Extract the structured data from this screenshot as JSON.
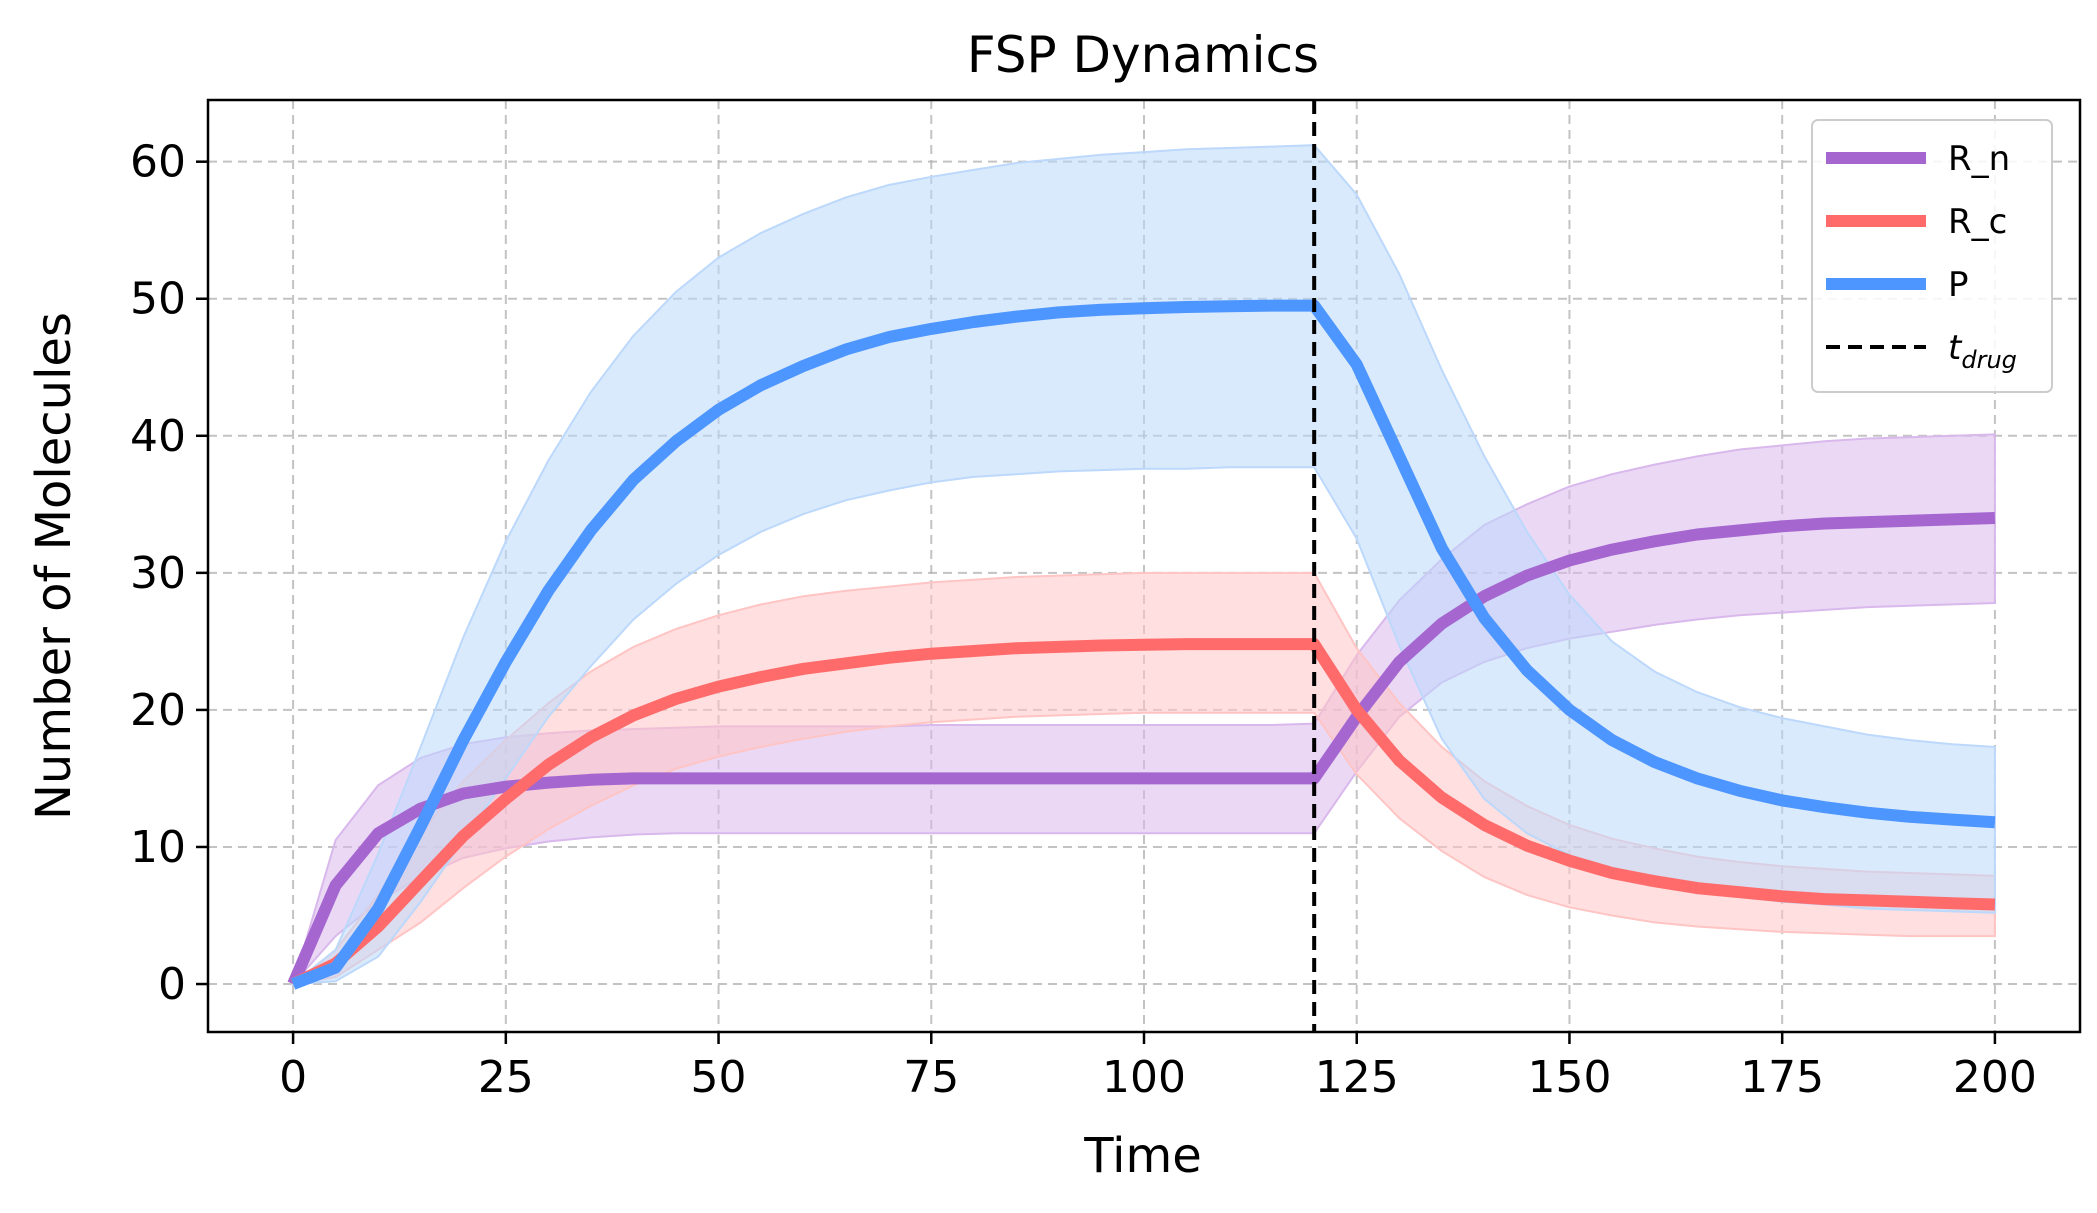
{
  "chart_data": {
    "type": "line",
    "title": "FSP Dynamics",
    "xlabel": "Time",
    "ylabel": "Number of  Molecules",
    "xlim": [
      -10,
      210
    ],
    "ylim": [
      -3.5,
      64.5
    ],
    "xticks": [
      0,
      25,
      50,
      75,
      100,
      125,
      150,
      175,
      200
    ],
    "yticks": [
      0,
      10,
      20,
      30,
      40,
      50,
      60
    ],
    "grid": true,
    "legend_position": "top-right",
    "x": [
      0,
      5,
      10,
      15,
      20,
      25,
      30,
      35,
      40,
      45,
      50,
      55,
      60,
      65,
      70,
      75,
      80,
      85,
      90,
      95,
      100,
      105,
      110,
      115,
      120,
      125,
      130,
      135,
      140,
      145,
      150,
      155,
      160,
      165,
      170,
      175,
      180,
      185,
      190,
      195,
      200
    ],
    "series": [
      {
        "name": "R_n",
        "color": "#a566d0",
        "band_color": "#d9b8ec",
        "mean": [
          0,
          7.2,
          11,
          12.8,
          13.9,
          14.4,
          14.7,
          14.9,
          15,
          15,
          15,
          15,
          15,
          15,
          15,
          15,
          15,
          15,
          15,
          15,
          15,
          15,
          15,
          15,
          15,
          19.5,
          23.5,
          26.3,
          28.3,
          29.8,
          30.9,
          31.7,
          32.3,
          32.8,
          33.1,
          33.4,
          33.6,
          33.7,
          33.8,
          33.9,
          34
        ],
        "lower": [
          0,
          3.5,
          6,
          7.8,
          9.2,
          9.9,
          10.4,
          10.7,
          10.9,
          11,
          11,
          11,
          11,
          11,
          11,
          11,
          11,
          11,
          11,
          11,
          11,
          11,
          11,
          11,
          11,
          15.5,
          19.5,
          22,
          23.5,
          24.5,
          25.2,
          25.7,
          26.2,
          26.6,
          26.9,
          27.1,
          27.3,
          27.5,
          27.6,
          27.7,
          27.8
        ],
        "upper": [
          0,
          10.5,
          14.5,
          16.5,
          17.5,
          18,
          18.3,
          18.5,
          18.6,
          18.7,
          18.8,
          18.8,
          18.8,
          18.8,
          18.8,
          18.9,
          18.9,
          18.9,
          18.9,
          18.9,
          18.9,
          18.9,
          18.9,
          18.9,
          19,
          24,
          28,
          31,
          33.5,
          35,
          36.3,
          37.2,
          37.9,
          38.5,
          39,
          39.3,
          39.6,
          39.8,
          39.9,
          40,
          40.1
        ]
      },
      {
        "name": "R_c",
        "color": "#ff6b6b",
        "band_color": "#ffc4c4",
        "mean": [
          0,
          1.5,
          4.2,
          7.5,
          10.8,
          13.5,
          16,
          18,
          19.6,
          20.8,
          21.7,
          22.4,
          23,
          23.4,
          23.8,
          24.1,
          24.3,
          24.5,
          24.6,
          24.7,
          24.75,
          24.8,
          24.8,
          24.8,
          24.8,
          20,
          16.3,
          13.6,
          11.6,
          10.1,
          9,
          8.1,
          7.5,
          7,
          6.7,
          6.4,
          6.2,
          6.1,
          6,
          5.9,
          5.8
        ],
        "lower": [
          0,
          0.5,
          2.5,
          4.5,
          7,
          9.3,
          11.3,
          13,
          14.5,
          15.7,
          16.6,
          17.3,
          17.9,
          18.4,
          18.8,
          19.1,
          19.3,
          19.5,
          19.6,
          19.7,
          19.8,
          19.8,
          19.8,
          19.8,
          19.8,
          15.3,
          12.1,
          9.7,
          7.8,
          6.5,
          5.6,
          5,
          4.5,
          4.2,
          4,
          3.8,
          3.7,
          3.6,
          3.5,
          3.5,
          3.5
        ],
        "upper": [
          0,
          2.5,
          6.5,
          11,
          14.8,
          17.8,
          20.5,
          22.8,
          24.6,
          25.9,
          26.9,
          27.7,
          28.3,
          28.7,
          29,
          29.3,
          29.5,
          29.7,
          29.8,
          29.9,
          30,
          30,
          30,
          30,
          30,
          24.5,
          20.5,
          17.3,
          14.8,
          13,
          11.6,
          10.6,
          9.9,
          9.3,
          8.9,
          8.6,
          8.4,
          8.2,
          8.1,
          8,
          7.9
        ]
      },
      {
        "name": "P",
        "color": "#4d96ff",
        "band_color": "#bcd8fb",
        "mean": [
          0,
          1.2,
          5.5,
          11.5,
          17.8,
          23.5,
          28.7,
          33.1,
          36.8,
          39.6,
          41.9,
          43.7,
          45.1,
          46.3,
          47.2,
          47.8,
          48.3,
          48.7,
          49,
          49.2,
          49.3,
          49.4,
          49.45,
          49.5,
          49.5,
          45.2,
          38.5,
          31.8,
          26.7,
          22.9,
          20,
          17.8,
          16.2,
          15,
          14.1,
          13.4,
          12.9,
          12.5,
          12.2,
          12,
          11.8
        ],
        "lower": [
          0,
          0.2,
          2,
          6,
          10.5,
          15,
          19.5,
          23.2,
          26.6,
          29.2,
          31.3,
          33,
          34.3,
          35.3,
          36,
          36.6,
          37,
          37.2,
          37.4,
          37.5,
          37.6,
          37.6,
          37.7,
          37.7,
          37.7,
          32.5,
          24.7,
          17.9,
          13.5,
          11,
          9.4,
          8.3,
          7.5,
          6.9,
          6.4,
          6,
          5.8,
          5.5,
          5.4,
          5.3,
          5.2
        ],
        "upper": [
          0,
          2.5,
          9.5,
          17.3,
          25.3,
          32.3,
          38.2,
          43.2,
          47.3,
          50.5,
          53,
          54.8,
          56.2,
          57.4,
          58.3,
          58.9,
          59.4,
          59.9,
          60.2,
          60.5,
          60.7,
          60.9,
          61,
          61.1,
          61.2,
          57.6,
          51.8,
          44.8,
          38.5,
          33,
          28.4,
          25,
          22.8,
          21.3,
          20.2,
          19.4,
          18.8,
          18.2,
          17.8,
          17.5,
          17.3
        ]
      }
    ],
    "vlines": [
      {
        "name": "$t_{drug}$",
        "label_main": "t",
        "label_sub": "drug",
        "x": 120,
        "color": "#000000",
        "style": "dashed"
      }
    ]
  }
}
